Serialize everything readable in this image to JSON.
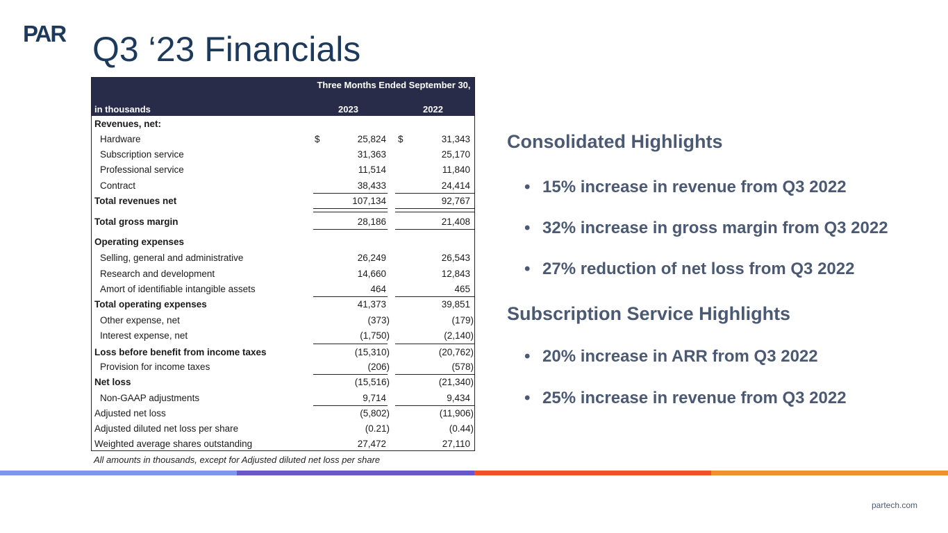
{
  "brand": {
    "logo_text": "PAR",
    "website": "partech.com"
  },
  "slide_title": "Q3 ‘23 Financials",
  "table": {
    "period_header": "Three Months Ended September 30,",
    "label_header": "in thousands",
    "col1_header": "2023",
    "col2_header": "2022",
    "rows": [
      {
        "label": "Revenues, net:",
        "v1": "",
        "v2": ""
      },
      {
        "label": "Hardware",
        "cur1": "$",
        "v1": "25,824",
        "cur2": "$",
        "v2": "31,343"
      },
      {
        "label": "Subscription service",
        "v1": "31,363",
        "v2": "25,170"
      },
      {
        "label": "Professional service",
        "v1": "11,514",
        "v2": "11,840"
      },
      {
        "label": "Contract",
        "v1": "38,433",
        "v2": "24,414"
      },
      {
        "label": "Total revenues net",
        "v1": "107,134",
        "v2": "92,767"
      },
      {
        "label": "Total gross margin",
        "v1": "28,186",
        "v2": "21,408"
      },
      {
        "label": "Operating expenses",
        "v1": "",
        "v2": ""
      },
      {
        "label": "Selling, general and administrative",
        "v1": "26,249",
        "v2": "26,543"
      },
      {
        "label": "Research and development",
        "v1": "14,660",
        "v2": "12,843"
      },
      {
        "label": "Amort of identifiable intangible assets",
        "v1": "464",
        "v2": "465"
      },
      {
        "label": "Total operating expenses",
        "v1": "41,373",
        "v2": "39,851"
      },
      {
        "label": "Other expense, net",
        "v1": "(373)",
        "v2": "(179)"
      },
      {
        "label": "Interest expense, net",
        "v1": "(1,750)",
        "v2": "(2,140)"
      },
      {
        "label": "Loss before benefit from income taxes",
        "v1": "(15,310)",
        "v2": "(20,762)"
      },
      {
        "label": "Provision for income taxes",
        "v1": "(206)",
        "v2": "(578)"
      },
      {
        "label": "Net loss",
        "v1": "(15,516)",
        "v2": "(21,340)"
      },
      {
        "label": "Non-GAAP adjustments",
        "v1": "9,714",
        "v2": "9,434"
      },
      {
        "label": "Adjusted net loss",
        "v1": "(5,802)",
        "v2": "(11,906)"
      },
      {
        "label": "Adjusted diluted net loss per share",
        "v1": "(0.21)",
        "v2": "(0.44)"
      },
      {
        "label": "Weighted average shares outstanding",
        "v1": "27,472",
        "v2": "27,110"
      }
    ],
    "footnote": "All amounts in thousands, except for Adjusted diluted net loss per share"
  },
  "consolidated": {
    "heading": "Consolidated Highlights",
    "bullets": [
      "15% increase in revenue from Q3 2022",
      "32% increase in gross margin from Q3 2022",
      "27% reduction of net loss from Q3 2022"
    ]
  },
  "subscription": {
    "heading": "Subscription Service Highlights",
    "bullets": [
      "20% increase in ARR from Q3 2022",
      "25% increase in revenue from Q3 2022"
    ]
  },
  "colors": {
    "title": "#1d3a5c",
    "header_bg": "#282c48",
    "highlight_text": "#4b5a72",
    "bar1": "#7f96ee",
    "bar2": "#6a57c8",
    "bar3": "#ee5426",
    "bar4": "#f0902a"
  }
}
